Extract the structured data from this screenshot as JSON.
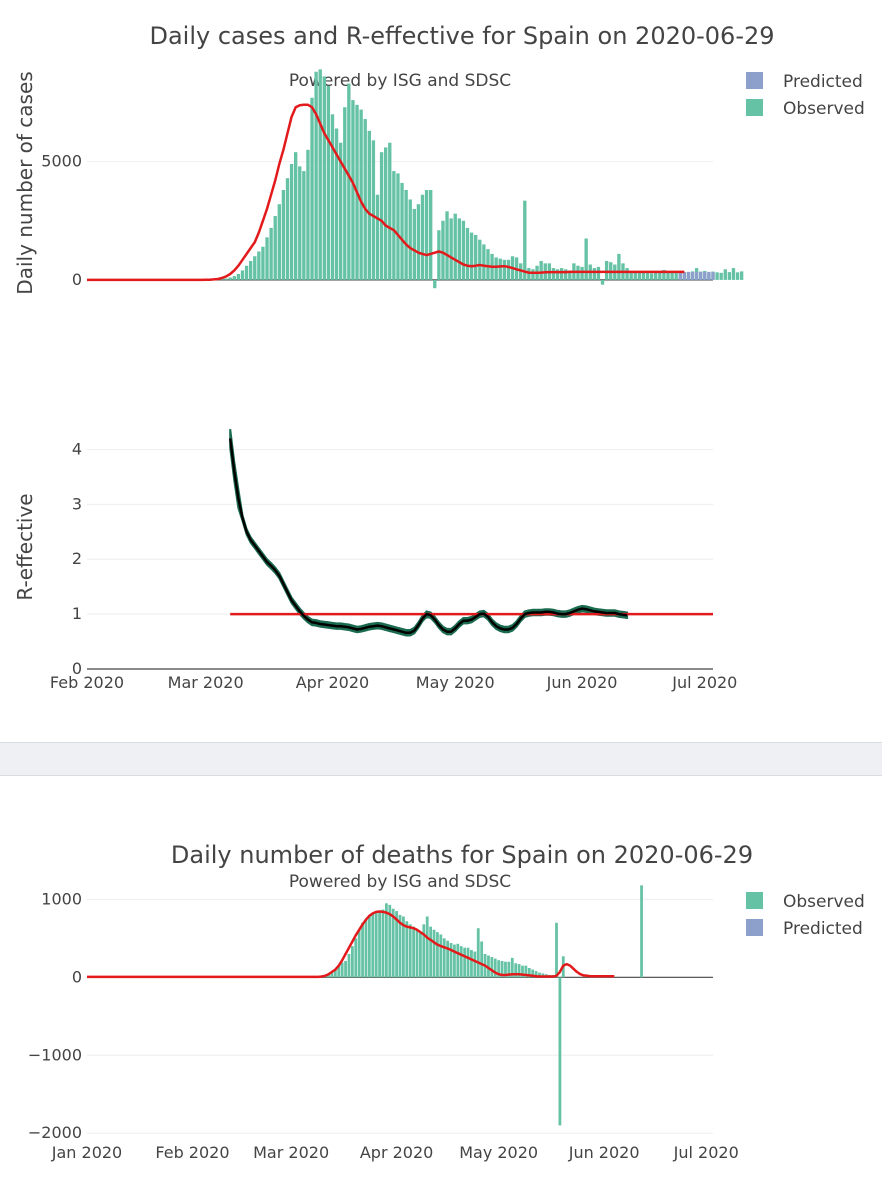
{
  "colors": {
    "observed": "#66c2a5",
    "predicted": "#8da0cb",
    "smooth": "#e31a1c",
    "r_line": "#000000",
    "r_band": "#1b6b50",
    "grid": "#eeeeee"
  },
  "chart_data": [
    {
      "type": "bar",
      "title": "Daily cases and R-effective for Spain on 2020-06-29",
      "subtitle": "Powered by ISG and SDSC",
      "ylabel": "Daily number of cases",
      "ylim": [
        -300,
        9000
      ],
      "yticks": [
        0,
        5000
      ],
      "x_start": "2020-02-01",
      "x_end": "2020-07-03",
      "legend": [
        "Predicted",
        "Observed"
      ],
      "observed_start": "2020-03-01",
      "observed_values": [
        10,
        15,
        20,
        30,
        50,
        60,
        100,
        160,
        250,
        400,
        600,
        800,
        1000,
        1200,
        1400,
        1800,
        2200,
        2700,
        3200,
        3800,
        4300,
        4900,
        5400,
        4800,
        4600,
        5500,
        7700,
        8800,
        8900,
        8600,
        8200,
        7000,
        6400,
        5800,
        7300,
        8300,
        7600,
        7400,
        7200,
        6800,
        6300,
        5900,
        3600,
        5400,
        5600,
        5800,
        4600,
        4500,
        4100,
        3800,
        3400,
        3000,
        3200,
        3600,
        3800,
        3800,
        -350,
        2100,
        2500,
        2900,
        2600,
        2800,
        2600,
        2500,
        2200,
        2000,
        1900,
        1700,
        1500,
        1300,
        1100,
        950,
        900,
        850,
        850,
        1000,
        950,
        700,
        3350,
        500,
        450,
        600,
        800,
        700,
        700,
        500,
        450,
        500,
        450,
        400,
        700,
        600,
        550,
        1750,
        650,
        500,
        550,
        -200,
        800,
        750,
        650,
        1100,
        700,
        500,
        350,
        300,
        330,
        350,
        300,
        280,
        300,
        340,
        420,
        300,
        350,
        380,
        330,
        310,
        300,
        360,
        500,
        350,
        380,
        300,
        350,
        320,
        300,
        450,
        330,
        500,
        320,
        360
      ],
      "predicted_start": "2020-06-25",
      "predicted_values": [
        330,
        330,
        340,
        340,
        340,
        340,
        340,
        340,
        340
      ],
      "smooth_start": "2020-02-01",
      "smooth_values": [
        0,
        0,
        0,
        0,
        0,
        0,
        0,
        0,
        0,
        0,
        0,
        0,
        0,
        0,
        0,
        0,
        0,
        0,
        0,
        0,
        0,
        0,
        0,
        0,
        0,
        0,
        0,
        0,
        0,
        5,
        10,
        20,
        40,
        80,
        150,
        250,
        400,
        600,
        850,
        1100,
        1350,
        1600,
        2000,
        2500,
        3000,
        3600,
        4200,
        4900,
        5500,
        6200,
        6900,
        7300,
        7380,
        7400,
        7400,
        7300,
        7000,
        6600,
        6200,
        5900,
        5600,
        5300,
        5000,
        4700,
        4400,
        4100,
        3700,
        3300,
        3000,
        2800,
        2700,
        2600,
        2500,
        2300,
        2200,
        2100,
        1900,
        1700,
        1500,
        1350,
        1250,
        1150,
        1100,
        1050,
        1100,
        1150,
        1200,
        1150,
        1050,
        950,
        850,
        750,
        650,
        600,
        580,
        600,
        630,
        600,
        580,
        560,
        560,
        570,
        580,
        550,
        500,
        450,
        400,
        350,
        310,
        300,
        300,
        310,
        320,
        330,
        330,
        330,
        330,
        330,
        340,
        340,
        340,
        340,
        340,
        340,
        340,
        340,
        340,
        340,
        340,
        340,
        340,
        340,
        340,
        340,
        340,
        340,
        340,
        340,
        340,
        340,
        340,
        340,
        340,
        340,
        340,
        340,
        340
      ]
    },
    {
      "type": "line",
      "ylabel": "R-effective",
      "ylim": [
        0,
        4.5
      ],
      "yticks": [
        0,
        1,
        2,
        3,
        4
      ],
      "x_ticks": [
        "Feb 2020",
        "Mar 2020",
        "Apr 2020",
        "May 2020",
        "Jun 2020",
        "Jul 2020"
      ],
      "x_start": "2020-02-01",
      "x_end": "2020-07-03",
      "threshold": 1,
      "r_start": "2020-03-07",
      "r_values": [
        4.2,
        3.6,
        3.1,
        2.75,
        2.5,
        2.35,
        2.25,
        2.15,
        2.05,
        1.95,
        1.88,
        1.8,
        1.7,
        1.55,
        1.4,
        1.25,
        1.15,
        1.05,
        0.97,
        0.9,
        0.85,
        0.84,
        0.82,
        0.81,
        0.8,
        0.79,
        0.78,
        0.78,
        0.77,
        0.76,
        0.74,
        0.72,
        0.73,
        0.75,
        0.77,
        0.78,
        0.79,
        0.78,
        0.76,
        0.74,
        0.72,
        0.7,
        0.68,
        0.66,
        0.66,
        0.7,
        0.8,
        0.92,
        1.0,
        0.98,
        0.9,
        0.8,
        0.72,
        0.68,
        0.68,
        0.74,
        0.82,
        0.88,
        0.88,
        0.9,
        0.95,
        1.0,
        1.01,
        0.95,
        0.85,
        0.78,
        0.74,
        0.72,
        0.72,
        0.75,
        0.82,
        0.92,
        1.0,
        1.02,
        1.03,
        1.03,
        1.03,
        1.04,
        1.04,
        1.03,
        1.01,
        1.0,
        1.0,
        1.02,
        1.05,
        1.08,
        1.1,
        1.09,
        1.07,
        1.05,
        1.04,
        1.03,
        1.02,
        1.02,
        1.02,
        1.0,
        0.99,
        0.98
      ],
      "r_band_half_width": 0.05
    },
    {
      "type": "bar",
      "title": "Daily number of deaths for Spain on 2020-06-29",
      "subtitle": "Powered by ISG and SDSC",
      "ylim": [
        -2100,
        1300
      ],
      "yticks": [
        1000,
        0,
        -1000,
        -2000
      ],
      "ytick_labels": [
        "1000",
        "0",
        "−1000",
        "−2000"
      ],
      "x_ticks": [
        "Jan 2020",
        "Feb 2020",
        "Mar 2020",
        "Apr 2020",
        "May 2020",
        "Jun 2020",
        "Jul 2020"
      ],
      "x_start": "2020-01-01",
      "x_end": "2020-07-03",
      "legend": [
        "Observed",
        "Predicted"
      ],
      "observed_start": "2020-03-08",
      "observed_values": [
        10,
        10,
        20,
        30,
        40,
        60,
        100,
        150,
        190,
        210,
        300,
        400,
        500,
        600,
        700,
        750,
        800,
        830,
        840,
        850,
        870,
        950,
        930,
        880,
        850,
        800,
        780,
        720,
        680,
        650,
        600,
        570,
        680,
        780,
        650,
        610,
        580,
        550,
        500,
        470,
        440,
        420,
        430,
        400,
        380,
        380,
        350,
        330,
        630,
        460,
        300,
        280,
        260,
        240,
        220,
        210,
        200,
        200,
        250,
        180,
        170,
        150,
        150,
        120,
        100,
        80,
        60,
        50,
        40,
        30,
        30,
        700,
        -1900,
        270,
        0,
        0,
        0,
        0,
        0,
        0,
        0,
        0,
        0,
        0,
        0,
        0,
        0,
        0,
        0,
        0,
        0,
        0,
        0,
        0,
        0,
        0,
        1180,
        0,
        0,
        0,
        0,
        0,
        0,
        0,
        0,
        0
      ],
      "smooth_start": "2020-01-01",
      "smooth_values": [
        5,
        5,
        5,
        5,
        5,
        5,
        5,
        5,
        5,
        5,
        5,
        5,
        5,
        5,
        5,
        5,
        5,
        5,
        5,
        5,
        5,
        5,
        5,
        5,
        5,
        5,
        5,
        5,
        5,
        5,
        5,
        5,
        5,
        5,
        5,
        5,
        5,
        5,
        5,
        5,
        5,
        5,
        5,
        5,
        5,
        5,
        5,
        5,
        5,
        5,
        5,
        5,
        5,
        5,
        5,
        5,
        5,
        5,
        5,
        5,
        5,
        5,
        5,
        5,
        5,
        5,
        5,
        5,
        5,
        10,
        20,
        40,
        70,
        100,
        150,
        220,
        300,
        380,
        460,
        540,
        610,
        680,
        740,
        790,
        820,
        840,
        845,
        840,
        830,
        810,
        780,
        740,
        700,
        670,
        650,
        640,
        630,
        610,
        580,
        550,
        510,
        480,
        450,
        420,
        400,
        385,
        370,
        350,
        330,
        310,
        290,
        270,
        250,
        230,
        210,
        190,
        170,
        150,
        120,
        90,
        60,
        40,
        30,
        30,
        35,
        40,
        40,
        40,
        35,
        30,
        25,
        20,
        15,
        10,
        10,
        10,
        10,
        10,
        20,
        70,
        150,
        170,
        150,
        110,
        70,
        40,
        25,
        20,
        15,
        15,
        15,
        15,
        15,
        15,
        15,
        15
      ]
    }
  ]
}
